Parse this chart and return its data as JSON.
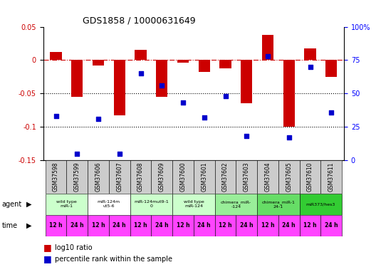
{
  "title": "GDS1858 / 10000631649",
  "samples": [
    "GSM37598",
    "GSM37599",
    "GSM37606",
    "GSM37607",
    "GSM37608",
    "GSM37609",
    "GSM37600",
    "GSM37601",
    "GSM37602",
    "GSM37603",
    "GSM37604",
    "GSM37605",
    "GSM37610",
    "GSM37611"
  ],
  "log10_ratio": [
    0.012,
    -0.055,
    -0.008,
    -0.083,
    0.015,
    -0.055,
    -0.004,
    -0.018,
    -0.012,
    -0.065,
    0.038,
    -0.1,
    0.018,
    -0.025
  ],
  "percentile_rank": [
    33,
    5,
    31,
    5,
    65,
    56,
    43,
    32,
    48,
    18,
    78,
    17,
    70,
    36
  ],
  "ylim_left": [
    -0.15,
    0.05
  ],
  "ylim_right": [
    0,
    100
  ],
  "yticks_left": [
    -0.15,
    -0.1,
    -0.05,
    0.0,
    0.05
  ],
  "ytick_labels_left": [
    "-0.15",
    "-0.1",
    "-0.05",
    "0",
    "0.05"
  ],
  "yticks_right": [
    0,
    25,
    50,
    75,
    100
  ],
  "ytick_labels_right": [
    "0",
    "25",
    "50",
    "75",
    "100%"
  ],
  "bar_color": "#cc0000",
  "dot_color": "#0000cc",
  "hline_color": "#cc0000",
  "dotline_y": [
    -0.05,
    -0.1
  ],
  "agent_groups": [
    {
      "label": "wild type\nmiR-1",
      "cols": [
        0,
        1
      ],
      "color": "#ccffcc"
    },
    {
      "label": "miR-124m\nut5-6",
      "cols": [
        2,
        3
      ],
      "color": "#ffffff"
    },
    {
      "label": "miR-124mut9-1\n0",
      "cols": [
        4,
        5
      ],
      "color": "#ccffcc"
    },
    {
      "label": "wild type\nmiR-124",
      "cols": [
        6,
        7
      ],
      "color": "#ccffcc"
    },
    {
      "label": "chimera_miR-\n-124",
      "cols": [
        8,
        9
      ],
      "color": "#99ee99"
    },
    {
      "label": "chimera_miR-1\n24-1",
      "cols": [
        10,
        11
      ],
      "color": "#66dd66"
    },
    {
      "label": "miR373/hes3",
      "cols": [
        12,
        13
      ],
      "color": "#33cc33"
    }
  ],
  "time_labels": [
    "12 h",
    "24 h",
    "12 h",
    "24 h",
    "12 h",
    "24 h",
    "12 h",
    "24 h",
    "12 h",
    "24 h",
    "12 h",
    "24 h",
    "12 h",
    "24 h"
  ],
  "time_color": "#ff44ff",
  "sample_bg_color": "#cccccc",
  "legend_bar_color": "#cc0000",
  "legend_dot_color": "#0000cc",
  "bar_width": 0.55,
  "fig_bg_color": "#ffffff"
}
